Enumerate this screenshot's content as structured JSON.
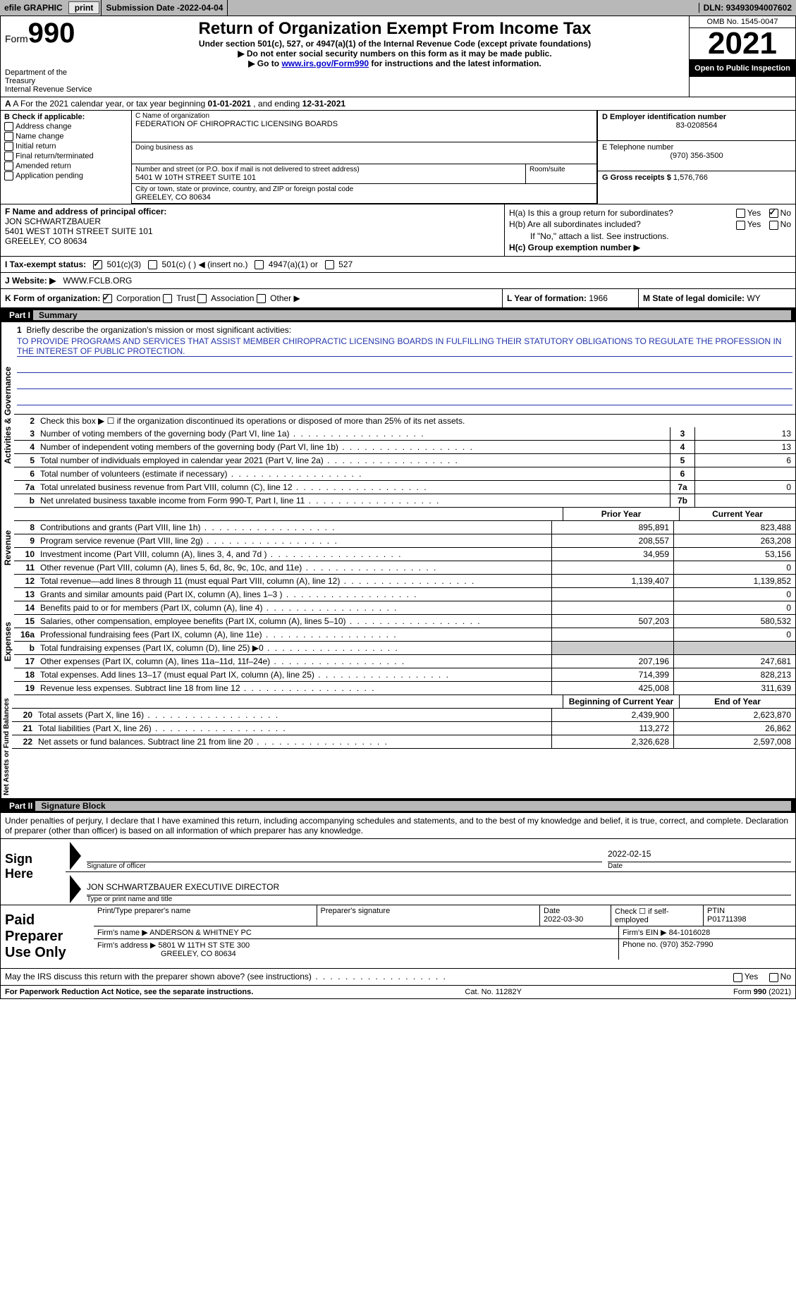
{
  "topbar": {
    "efile": "efile GRAPHIC",
    "print": "print",
    "sub_label": "Submission Date - ",
    "sub_date": "2022-04-04",
    "dln_label": "DLN: ",
    "dln": "93493094007602"
  },
  "header": {
    "form_word": "Form",
    "form_num": "990",
    "dept": "Department of the Treasury",
    "irs": "Internal Revenue Service",
    "title": "Return of Organization Exempt From Income Tax",
    "sub": "Under section 501(c), 527, or 4947(a)(1) of the Internal Revenue Code (except private foundations)",
    "note1": "▶ Do not enter social security numbers on this form as it may be made public.",
    "note2_pre": "▶ Go to ",
    "note2_link": "www.irs.gov/Form990",
    "note2_post": " for instructions and the latest information.",
    "omb": "OMB No. 1545-0047",
    "year": "2021",
    "otp": "Open to Public Inspection"
  },
  "row_a": {
    "label": "A For the 2021 calendar year, or tax year beginning ",
    "begin": "01-01-2021",
    "mid": " , and ending ",
    "end": "12-31-2021"
  },
  "b": {
    "header": "B Check if applicable:",
    "items": [
      "Address change",
      "Name change",
      "Initial return",
      "Final return/terminated",
      "Amended return",
      "Application pending"
    ]
  },
  "c": {
    "name_lbl": "C Name of organization",
    "name": "FEDERATION OF CHIROPRACTIC LICENSING BOARDS",
    "dba_lbl": "Doing business as",
    "dba": "",
    "street_lbl": "Number and street (or P.O. box if mail is not delivered to street address)",
    "street": "5401 W 10TH STREET SUITE 101",
    "room_lbl": "Room/suite",
    "room": "",
    "city_lbl": "City or town, state or province, country, and ZIP or foreign postal code",
    "city": "GREELEY, CO  80634"
  },
  "d": {
    "ein_lbl": "D Employer identification number",
    "ein": "83-0208564",
    "tel_lbl": "E Telephone number",
    "tel": "(970) 356-3500",
    "gross_lbl": "G Gross receipts $ ",
    "gross": "1,576,766"
  },
  "f": {
    "lbl": "F Name and address of principal officer:",
    "name": "JON SCHWARTZBAUER",
    "addr": "5401 WEST 10TH STREET SUITE 101",
    "city": "GREELEY, CO  80634"
  },
  "h": {
    "a_lbl": "H(a)  Is this a group return for subordinates?",
    "b_lbl": "H(b)  Are all subordinates included?",
    "b_note": "If \"No,\" attach a list. See instructions.",
    "c_lbl": "H(c)  Group exemption number ▶",
    "yes": "Yes",
    "no": "No"
  },
  "i": {
    "lbl": "I   Tax-exempt status:",
    "o1": "501(c)(3)",
    "o2": "501(c) (   ) ◀ (insert no.)",
    "o3": "4947(a)(1) or",
    "o4": "527"
  },
  "j": {
    "lbl": "J   Website: ▶",
    "val": "WWW.FCLB.ORG"
  },
  "k": {
    "lbl": "K Form of organization:",
    "o1": "Corporation",
    "o2": "Trust",
    "o3": "Association",
    "o4": "Other ▶",
    "l_lbl": "L Year of formation: ",
    "l_val": "1966",
    "m_lbl": "M State of legal domicile: ",
    "m_val": "WY"
  },
  "part1": {
    "title": "Part I",
    "subtitle": "Summary",
    "side_ag": "Activities & Governance",
    "side_rev": "Revenue",
    "side_exp": "Expenses",
    "side_na": "Net Assets or Fund Balances",
    "l1_lbl": "Briefly describe the organization's mission or most significant activities:",
    "l1_val": "TO PROVIDE PROGRAMS AND SERVICES THAT ASSIST MEMBER CHIROPRACTIC LICENSING BOARDS IN FULFILLING THEIR STATUTORY OBLIGATIONS TO REGULATE THE PROFESSION IN THE INTEREST OF PUBLIC PROTECTION.",
    "l2": "Check this box ▶ ☐  if the organization discontinued its operations or disposed of more than 25% of its net assets.",
    "lines_ag": [
      {
        "n": "3",
        "d": "Number of voting members of the governing body (Part VI, line 1a)",
        "b": "3",
        "v": "13"
      },
      {
        "n": "4",
        "d": "Number of independent voting members of the governing body (Part VI, line 1b)",
        "b": "4",
        "v": "13"
      },
      {
        "n": "5",
        "d": "Total number of individuals employed in calendar year 2021 (Part V, line 2a)",
        "b": "5",
        "v": "6"
      },
      {
        "n": "6",
        "d": "Total number of volunteers (estimate if necessary)",
        "b": "6",
        "v": ""
      },
      {
        "n": "7a",
        "d": "Total unrelated business revenue from Part VIII, column (C), line 12",
        "b": "7a",
        "v": "0"
      },
      {
        "n": "b",
        "d": "Net unrelated business taxable income from Form 990-T, Part I, line 11",
        "b": "7b",
        "v": ""
      }
    ],
    "head_prior": "Prior Year",
    "head_curr": "Current Year",
    "lines_rev": [
      {
        "n": "8",
        "d": "Contributions and grants (Part VIII, line 1h)",
        "v1": "895,891",
        "v2": "823,488"
      },
      {
        "n": "9",
        "d": "Program service revenue (Part VIII, line 2g)",
        "v1": "208,557",
        "v2": "263,208"
      },
      {
        "n": "10",
        "d": "Investment income (Part VIII, column (A), lines 3, 4, and 7d )",
        "v1": "34,959",
        "v2": "53,156"
      },
      {
        "n": "11",
        "d": "Other revenue (Part VIII, column (A), lines 5, 6d, 8c, 9c, 10c, and 11e)",
        "v1": "",
        "v2": "0"
      },
      {
        "n": "12",
        "d": "Total revenue—add lines 8 through 11 (must equal Part VIII, column (A), line 12)",
        "v1": "1,139,407",
        "v2": "1,139,852"
      }
    ],
    "lines_exp": [
      {
        "n": "13",
        "d": "Grants and similar amounts paid (Part IX, column (A), lines 1–3 )",
        "v1": "",
        "v2": "0"
      },
      {
        "n": "14",
        "d": "Benefits paid to or for members (Part IX, column (A), line 4)",
        "v1": "",
        "v2": "0"
      },
      {
        "n": "15",
        "d": "Salaries, other compensation, employee benefits (Part IX, column (A), lines 5–10)",
        "v1": "507,203",
        "v2": "580,532"
      },
      {
        "n": "16a",
        "d": "Professional fundraising fees (Part IX, column (A), line 11e)",
        "v1": "",
        "v2": "0"
      },
      {
        "n": "b",
        "d": "Total fundraising expenses (Part IX, column (D), line 25) ▶0",
        "v1": "GREY",
        "v2": "GREY"
      },
      {
        "n": "17",
        "d": "Other expenses (Part IX, column (A), lines 11a–11d, 11f–24e)",
        "v1": "207,196",
        "v2": "247,681"
      },
      {
        "n": "18",
        "d": "Total expenses. Add lines 13–17 (must equal Part IX, column (A), line 25)",
        "v1": "714,399",
        "v2": "828,213"
      },
      {
        "n": "19",
        "d": "Revenue less expenses. Subtract line 18 from line 12",
        "v1": "425,008",
        "v2": "311,639"
      }
    ],
    "head_boy": "Beginning of Current Year",
    "head_eoy": "End of Year",
    "lines_na": [
      {
        "n": "20",
        "d": "Total assets (Part X, line 16)",
        "v1": "2,439,900",
        "v2": "2,623,870"
      },
      {
        "n": "21",
        "d": "Total liabilities (Part X, line 26)",
        "v1": "113,272",
        "v2": "26,862"
      },
      {
        "n": "22",
        "d": "Net assets or fund balances. Subtract line 21 from line 20",
        "v1": "2,326,628",
        "v2": "2,597,008"
      }
    ]
  },
  "part2": {
    "title": "Part II",
    "subtitle": "Signature Block",
    "penalties": "Under penalties of perjury, I declare that I have examined this return, including accompanying schedules and statements, and to the best of my knowledge and belief, it is true, correct, and complete. Declaration of preparer (other than officer) is based on all information of which preparer has any knowledge.",
    "sign_here": "Sign Here",
    "sig_lbl": "Signature of officer",
    "sig_date": "2022-02-15",
    "date_lbl": "Date",
    "name_title": "JON SCHWARTZBAUER  EXECUTIVE DIRECTOR",
    "name_title_lbl": "Type or print name and title",
    "paid": "Paid Preparer Use Only",
    "p_name_lbl": "Print/Type preparer's name",
    "p_sig_lbl": "Preparer's signature",
    "p_date_lbl": "Date",
    "p_date": "2022-03-30",
    "p_check_lbl": "Check ☐ if self-employed",
    "ptin_lbl": "PTIN",
    "ptin": "P01711398",
    "firm_name_lbl": "Firm's name    ▶ ",
    "firm_name": "ANDERSON & WHITNEY PC",
    "firm_ein_lbl": "Firm's EIN ▶ ",
    "firm_ein": "84-1016028",
    "firm_addr_lbl": "Firm's address ▶ ",
    "firm_addr1": "5801 W 11TH ST STE 300",
    "firm_addr2": "GREELEY, CO  80634",
    "firm_phone_lbl": "Phone no. ",
    "firm_phone": "(970) 352-7990",
    "discuss": "May the IRS discuss this return with the preparer shown above? (see instructions)"
  },
  "footer": {
    "left": "For Paperwork Reduction Act Notice, see the separate instructions.",
    "mid": "Cat. No. 11282Y",
    "right": "Form 990 (2021)"
  }
}
